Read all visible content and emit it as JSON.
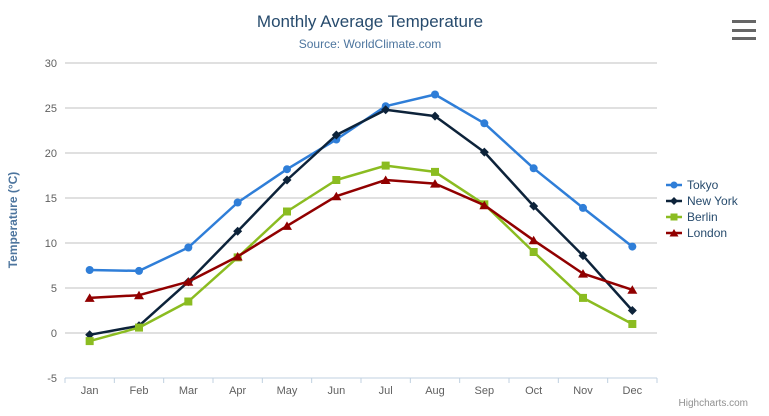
{
  "header": {
    "title": "Monthly Average Temperature",
    "subtitle": "Source: WorldClimate.com"
  },
  "chart_data": {
    "type": "line",
    "title": "Monthly Average Temperature",
    "subtitle": "Source: WorldClimate.com",
    "categories": [
      "Jan",
      "Feb",
      "Mar",
      "Apr",
      "May",
      "Jun",
      "Jul",
      "Aug",
      "Sep",
      "Oct",
      "Nov",
      "Dec"
    ],
    "xlabel": "",
    "ylabel": "Temperature (°C)",
    "ylim": [
      -5,
      30
    ],
    "yticks": [
      -5,
      0,
      5,
      10,
      15,
      20,
      25,
      30
    ],
    "grid": true,
    "legend_position": "right",
    "series": [
      {
        "name": "Tokyo",
        "color": "#2f7ed8",
        "marker": "circle",
        "values": [
          7.0,
          6.9,
          9.5,
          14.5,
          18.2,
          21.5,
          25.2,
          26.5,
          23.3,
          18.3,
          13.9,
          9.6
        ]
      },
      {
        "name": "New York",
        "color": "#0d233a",
        "marker": "diamond",
        "values": [
          -0.2,
          0.8,
          5.7,
          11.3,
          17.0,
          22.0,
          24.8,
          24.1,
          20.1,
          14.1,
          8.6,
          2.5
        ]
      },
      {
        "name": "Berlin",
        "color": "#8bbc21",
        "marker": "square",
        "values": [
          -0.9,
          0.6,
          3.5,
          8.4,
          13.5,
          17.0,
          18.6,
          17.9,
          14.3,
          9.0,
          3.9,
          1.0
        ]
      },
      {
        "name": "London",
        "color": "#910000",
        "marker": "triangle",
        "values": [
          3.9,
          4.2,
          5.7,
          8.5,
          11.9,
          15.2,
          17.0,
          16.6,
          14.2,
          10.3,
          6.6,
          4.8
        ]
      }
    ]
  },
  "colors": {
    "title": "#274b6d",
    "subtitle": "#4d759e",
    "axis_title": "#4d759e",
    "tick_label": "#606060",
    "grid_line": "#c0c0c0",
    "axis_line": "#c0d0e0",
    "credits": "#909090",
    "menu_icon": "#666666"
  },
  "credits": {
    "text": "Highcharts.com"
  }
}
